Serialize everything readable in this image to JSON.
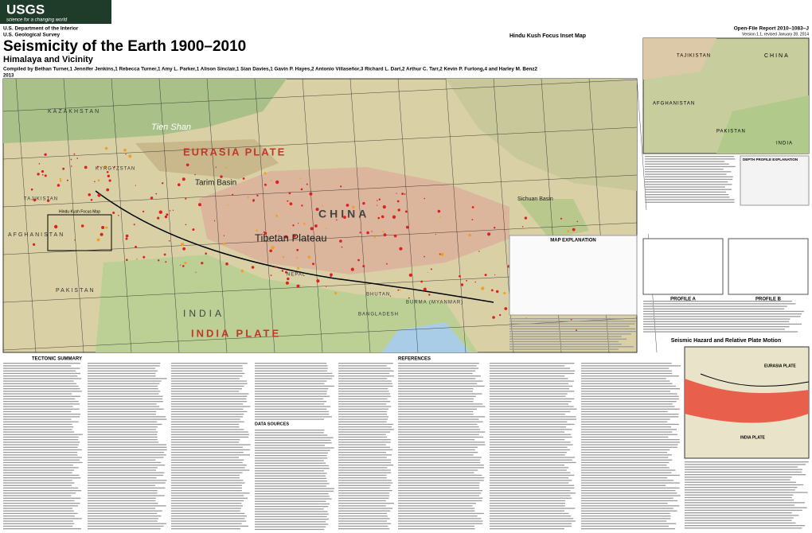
{
  "header": {
    "logo": "USGS",
    "tagline": "science for a changing world",
    "department": "U.S. Department of the Interior",
    "survey": "U.S. Geological Survey",
    "report": "Open-File Report 2010–1083–J",
    "version": "Version 1.1, revised January 28, 2014"
  },
  "title": "Seismicity of the Earth 1900–2010",
  "subtitle": "Himalaya and Vicinity",
  "authors": "Compiled by Bethan Turner,1 Jennifer Jenkins,1 Rebecca Turner,1 Amy L. Parker,1 Alison Sinclair,1 Sian Davies,1 Gavin P. Hayes,2 Antonio Villaseñor,3 Richard L. Dart,2 Arthur C. Tarr,2 Kevin P. Furlong,4 and Harley M. Benz2",
  "year": "2013",
  "main_map": {
    "labels": [
      "KAZAKHSTAN",
      "EURASIA PLATE",
      "Tarim Basin",
      "KYRGYZSTAN",
      "TAJIKISTAN",
      "AFGHANISTAN",
      "CHINA",
      "Tibetan Plateau",
      "Sichuan Basin",
      "PAKISTAN",
      "INDIA",
      "INDIA PLATE",
      "NEPAL",
      "BHUTAN",
      "BANGLADESH",
      "BURMA (MYANMAR)",
      "Tien Shan",
      "Hindu Kush Focus Map"
    ]
  },
  "inset": {
    "title": "Hindu Kush Focus Inset Map",
    "labels": [
      "TAJIKISTAN",
      "CHINA",
      "AFGHANISTAN",
      "PAKISTAN",
      "INDIA"
    ]
  },
  "sections": {
    "tectonic": "TECTONIC SUMMARY",
    "references": "REFERENCES",
    "data_sources": "DATA SOURCES",
    "map_explanation": "MAP EXPLANATION",
    "depth_explanation": "DEPTH PROFILE EXPLANATION",
    "profile_a": "PROFILE A",
    "profile_b": "PROFILE B",
    "hazard": "Seismic Hazard and Relative Plate Motion",
    "hazard_labels": [
      "EURASIA PLATE",
      "INDIA PLATE"
    ]
  }
}
